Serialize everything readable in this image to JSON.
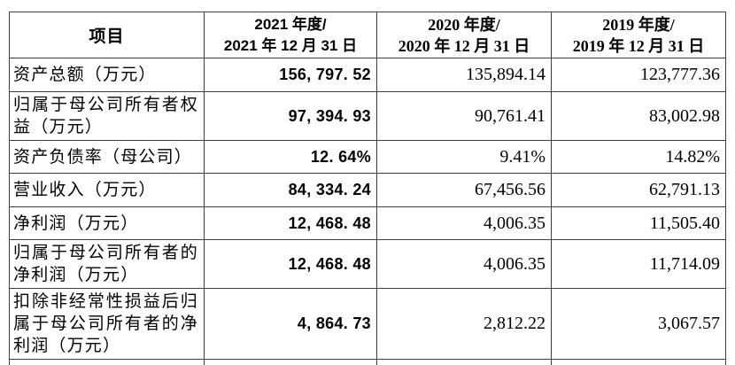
{
  "table": {
    "header": {
      "item_label": "项目",
      "periods": [
        {
          "line1": "2021 年度/",
          "line2": "2021 年 12 月 31 日"
        },
        {
          "line1": "2020 年度/",
          "line2": "2020 年 12 月 31 日"
        },
        {
          "line1": "2019 年度/",
          "line2": "2019 年 12 月 31 日"
        }
      ]
    },
    "rows": [
      {
        "item": "资产总额（万元）",
        "y2021": "156, 797. 52",
        "y2020": "135,894.14",
        "y2019": "123,777.36"
      },
      {
        "item": "归属于母公司所有者权益（万元）",
        "y2021": "97, 394. 93",
        "y2020": "90,761.41",
        "y2019": "83,002.98"
      },
      {
        "item": "资产负债率（母公司）",
        "y2021": "12. 64%",
        "y2020": "9.41%",
        "y2019": "14.82%"
      },
      {
        "item": "营业收入（万元）",
        "y2021": "84, 334. 24",
        "y2020": "67,456.56",
        "y2019": "62,791.13"
      },
      {
        "item": "净利润（万元）",
        "y2021": "12, 468. 48",
        "y2020": "4,006.35",
        "y2019": "11,505.40"
      },
      {
        "item": "归属于母公司所有者的净利润（万元）",
        "y2021": "12, 468. 48",
        "y2020": "4,006.35",
        "y2019": "11,714.09"
      },
      {
        "item": "扣除非经常性损益后归属于母公司所有者的净利润（万元）",
        "y2021": "4, 864. 73",
        "y2020": "2,812.22",
        "y2019": "3,067.57"
      }
    ]
  }
}
